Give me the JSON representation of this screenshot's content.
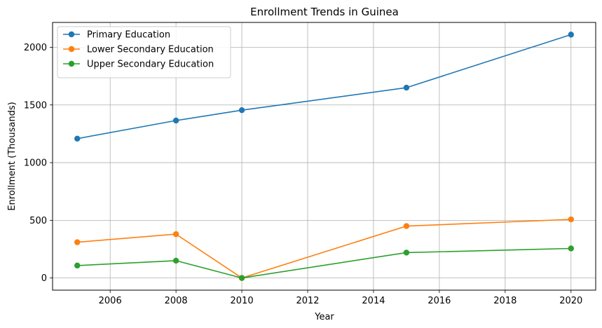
{
  "chart_data": {
    "type": "line",
    "title": "Enrollment Trends in Guinea",
    "xlabel": "Year",
    "ylabel": "Enrollment (Thousands)",
    "x": [
      2005,
      2008,
      2010,
      2015,
      2020
    ],
    "series": [
      {
        "name": "Primary Education",
        "color": "#1f77b4",
        "values": [
          1208,
          1365,
          1455,
          1650,
          2110
        ]
      },
      {
        "name": "Lower Secondary Education",
        "color": "#ff7f0e",
        "values": [
          310,
          380,
          0,
          450,
          508
        ]
      },
      {
        "name": "Upper Secondary Education",
        "color": "#2ca02c",
        "values": [
          108,
          150,
          0,
          220,
          256
        ]
      }
    ],
    "xlim": [
      2004.25,
      2020.75
    ],
    "ylim": [
      -105.5,
      2215.5
    ],
    "xticks": [
      2006,
      2008,
      2010,
      2012,
      2014,
      2016,
      2018,
      2020
    ],
    "yticks": [
      0,
      500,
      1000,
      1500,
      2000
    ],
    "grid": true,
    "legend_position": "top-left"
  }
}
